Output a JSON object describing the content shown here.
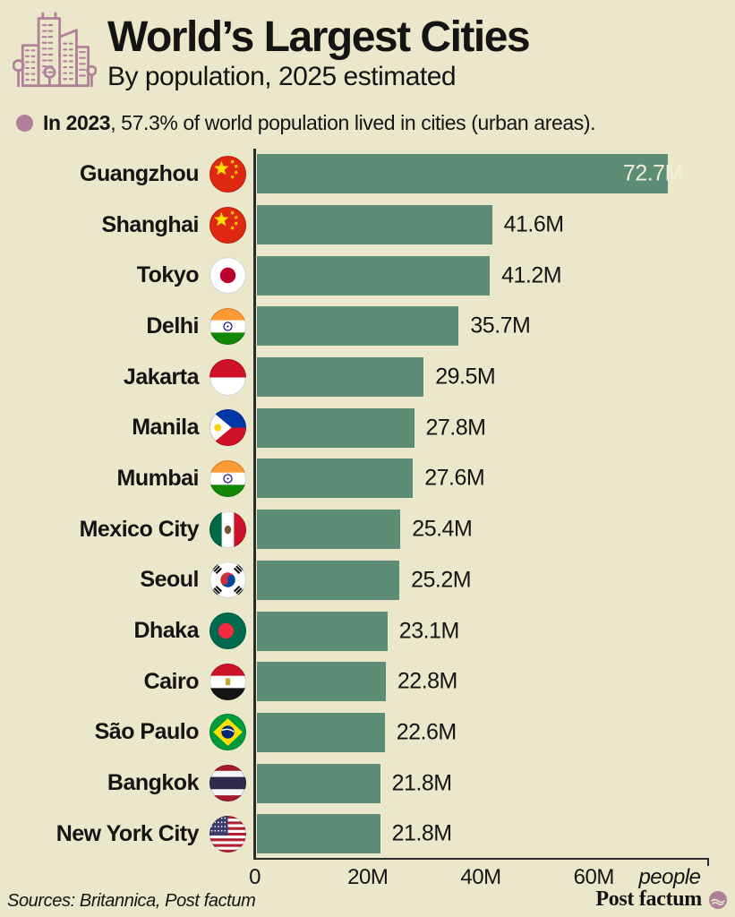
{
  "header": {
    "title": "World’s Largest Cities",
    "subtitle": "By population, 2025 estimated"
  },
  "stat": {
    "bold": "In 2023",
    "rest": ", 57.3% of world population lived in cities (urban areas)."
  },
  "chart_data": {
    "type": "bar",
    "orientation": "horizontal",
    "title": "World’s Largest Cities",
    "subtitle": "By population, 2025 estimated",
    "categories": [
      "Guangzhou",
      "Shanghai",
      "Tokyo",
      "Delhi",
      "Jakarta",
      "Manila",
      "Mumbai",
      "Mexico City",
      "Seoul",
      "Dhaka",
      "Cairo",
      "São Paulo",
      "Bangkok",
      "New York City"
    ],
    "values_millions": [
      72.7,
      41.6,
      41.2,
      35.7,
      29.5,
      27.8,
      27.6,
      25.4,
      25.2,
      23.1,
      22.8,
      22.6,
      21.8,
      21.8
    ],
    "value_labels": [
      "72.7M",
      "41.6M",
      "41.2M",
      "35.7M",
      "29.5M",
      "27.8M",
      "27.6M",
      "25.4M",
      "25.2M",
      "23.1M",
      "22.8M",
      "22.6M",
      "21.8M",
      "21.8M"
    ],
    "countries": [
      "china",
      "china",
      "japan",
      "india",
      "indonesia",
      "philippines",
      "india",
      "mexico",
      "south-korea",
      "bangladesh",
      "egypt",
      "brazil",
      "thailand",
      "usa"
    ],
    "country_codes": [
      "cn",
      "cn",
      "jp",
      "in",
      "id",
      "ph",
      "in",
      "mx",
      "kr",
      "bd",
      "eg",
      "br",
      "th",
      "us"
    ],
    "xlim_millions": [
      0,
      80
    ],
    "xticks": [
      {
        "value": 0,
        "label": "0"
      },
      {
        "value": 20,
        "label": "20M"
      },
      {
        "value": 40,
        "label": "40M"
      },
      {
        "value": 60,
        "label": "60M"
      }
    ],
    "x_unit_label": "people",
    "grid": false,
    "legend": false,
    "bar_color": "#5d8c77"
  },
  "footer": {
    "sources": "Sources: Britannica, Post factum",
    "brand": "Post factum"
  },
  "colors": {
    "background": "#ebe7cb",
    "bar": "#5d8c77",
    "accent": "#b0809a",
    "text": "#141414",
    "axis": "#2b2b2b",
    "value_inside_bar": "#f2eeda"
  },
  "icons": {
    "header": "city-buildings-icon",
    "brand": "post-factum-logo-icon"
  }
}
